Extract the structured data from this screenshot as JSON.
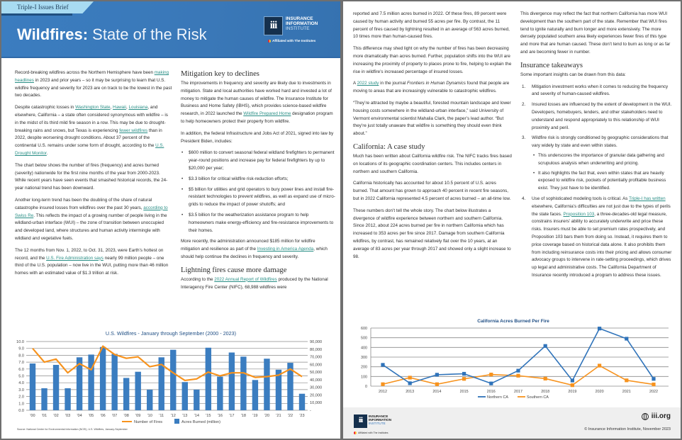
{
  "header": {
    "tag": "Triple-I Issues Brief",
    "title_bold": "Wildfires:",
    "title_light": "State of the Risk",
    "logo": {
      "line1": "INSURANCE",
      "line2": "INFORMATION",
      "line3": "INSTITUTE",
      "mark": "iii",
      "affiliated": "Affiliated with The Institutes"
    }
  },
  "left_col1": [
    {
      "type": "p",
      "segs": [
        {
          "t": "Record-breaking wildfires across the Northern Hemisphere have been "
        },
        {
          "t": "making headlines",
          "link": true
        },
        {
          "t": " in 2023 and prior years – so it may be surprising to learn that U.S. wildfire frequency and severity for 2023 are on track to be the lowest in the past two decades."
        }
      ]
    },
    {
      "type": "p",
      "segs": [
        {
          "t": "Despite catastrophic losses in "
        },
        {
          "t": "Washington State",
          "link": true
        },
        {
          "t": ", "
        },
        {
          "t": "Hawaii",
          "link": true
        },
        {
          "t": ", "
        },
        {
          "t": "Louisiana",
          "link": true
        },
        {
          "t": ", and elsewhere, California – a state often considered synonymous with wildfire – is in the midst of its third mild fire season in a row. This may be due to drought-breaking rains and snows, but Texas is experiencing "
        },
        {
          "t": "fewer wildfires",
          "link": true
        },
        {
          "t": " than in 2022, despite worsening drought conditions. About 37 percent of the continental U.S. remains under some form of drought, according to the "
        },
        {
          "t": "U.S. Drought Monitor",
          "link": true
        },
        {
          "t": "."
        }
      ]
    },
    {
      "type": "p",
      "segs": [
        {
          "t": "The chart below shows the number of fires (frequency) and acres burned (severity) nationwide for the first nine months of the year from 2000-2023. While recent years have seen events that smashed historical records, the 24-year national trend has been downward."
        }
      ]
    },
    {
      "type": "p",
      "segs": [
        {
          "t": "Another long-term trend has been the doubling of the share of natural catastrophe insured losses from wildfires over the past 30 years, "
        },
        {
          "t": "according to Swiss Re",
          "link": true
        },
        {
          "t": ". This reflects the impact of a growing number of people living in the wildland-urban interface (WUI) – the zone of transition between unoccupied and developed land, where structures and human activity intermingle with wildland and vegetative fuels."
        }
      ]
    },
    {
      "type": "p",
      "segs": [
        {
          "t": "The 12 months from Nov. 1, 2022, to Oct. 31, 2023, were Earth’s hottest on record, and the "
        },
        {
          "t": "U.S. Fire Administration says",
          "link": true
        },
        {
          "t": " nearly 99 million people – one third of the U.S. population – now live in the WUI, putting more than 46 million homes with an estimated value of $1.3 trillion at risk."
        }
      ]
    }
  ],
  "left_col2": [
    {
      "type": "h",
      "text": "Mitigation key to declines"
    },
    {
      "type": "p",
      "segs": [
        {
          "t": "The improvements in frequency and severity are likely due to investments in mitigation. State and local authorities have worked hard and invested a lot of money to mitigate the human causes of wildfire. The Insurance Institute for Business and Home Safety (IBHS), which provides science-based wildfire research, in 2022 launched the "
        },
        {
          "t": "Wildfire Prepared Home",
          "link": true
        },
        {
          "t": " designation program to help homeowners protect their property from wildfire."
        }
      ]
    },
    {
      "type": "p",
      "segs": [
        {
          "t": "In addition, the federal Infrastructure and Jobs Act of 2021, signed into law by President Biden, includes:"
        }
      ]
    },
    {
      "type": "ul",
      "items": [
        {
          "segs": [
            {
              "t": "$600 million to convert seasonal federal wildland firefighters to permanent year-round positions and increase pay for federal firefighters by up to $20,000 per year;"
            }
          ]
        },
        {
          "segs": [
            {
              "t": "$3.3 billion for critical wildfire risk-reduction efforts;"
            }
          ]
        },
        {
          "segs": [
            {
              "t": "$5 billion for utilities and grid operators to bury power lines and install fire-resistant technologies to prevent wildfires, as well as expand use of micro-grids to reduce the impact of power shutoffs; and"
            }
          ]
        },
        {
          "segs": [
            {
              "t": "$3.5 billion for the weatherization assistance program to help homeowners make energy-efficiency and fire-resistance improvements to their homes."
            }
          ]
        }
      ]
    },
    {
      "type": "p",
      "segs": [
        {
          "t": "More recently, the administration announced $185 million for wildfire mitigation and resilience as part of the "
        },
        {
          "t": "Investing in America Agenda",
          "link": true
        },
        {
          "t": ", which should help continue the declines in frequency and severity."
        }
      ]
    },
    {
      "type": "h",
      "text": "Lightning fires cause more damage"
    },
    {
      "type": "p",
      "segs": [
        {
          "t": "According to the "
        },
        {
          "t": "2022 Annual Report of Wildfires",
          "link": true
        },
        {
          "t": " produced by the National Interagency Fire Center (NIFC), 68,988 wildfires were"
        }
      ]
    }
  ],
  "right_col1": [
    {
      "type": "p",
      "segs": [
        {
          "t": "reported and 7.5 million acres burned in 2022. Of these fires, 89 percent were caused by human activity and burned 55 acres per fire. By contrast, the 11 percent of fires caused by lightning resulted in an average of 563 acres burned, 10 times more than human-caused fires."
        }
      ]
    },
    {
      "type": "p",
      "segs": [
        {
          "t": "This difference may shed light on why the number of fires has been decreasing more dramatically than acres burned. Further, population shifts into the WUI are increasing the proximity of property to places prone to fire, helping to explain the rise in wildfire’s increased percentage of insured losses."
        }
      ]
    },
    {
      "type": "p",
      "segs": [
        {
          "t": "A "
        },
        {
          "t": "2022 study",
          "link": true
        },
        {
          "t": " in the journal "
        },
        {
          "t": "Frontiers in Human Dynamics",
          "italic": true
        },
        {
          "t": " found that people are moving to areas that are increasingly vulnerable to catastrophic wildfires."
        }
      ]
    },
    {
      "type": "p",
      "segs": [
        {
          "t": "“They’re attracted by maybe a beautiful, forested mountain landscape and lower housing costs somewhere in the wildland-urban interface,” said University of Vermont environmental scientist Mahalia Clark, the paper’s lead author. “But they’re just totally unaware that wildfire is something they should even think about.”"
        }
      ]
    },
    {
      "type": "h",
      "text": "California: A case study"
    },
    {
      "type": "p",
      "segs": [
        {
          "t": "Much has been written about California wildfire risk. The NIFC tracks fires based on locations of its geographic coordination centers. This includes centers in northern and southern California."
        }
      ]
    },
    {
      "type": "p",
      "segs": [
        {
          "t": "California historically has accounted for about 10.5 percent of U.S. acres burned. That amount has grown to approach 40 percent in recent fire seasons, but in 2022 California represented 4.5 percent of acres burned – an all-time low."
        }
      ]
    },
    {
      "type": "p",
      "segs": [
        {
          "t": "These numbers don’t tell the whole story. The chart below illustrates a divergence of wildfire experience between northern and southern California. Since 2012, about 224 acres burned per fire in northern California which has increased to 353 acres per fire since 2017. Damage from southern California wildfires, by contrast, has remained relatively flat over the 10 years, at an average of 83 acres per year through 2017 and showed only a slight increase to 98."
        }
      ]
    }
  ],
  "right_col2": [
    {
      "type": "p",
      "segs": [
        {
          "t": "This divergence may reflect the fact that northern California has more WUI development than the southern part of the state. Remember that WUI fires tend to ignite naturally and burn longer and more extensively. The more densely populated southern area likely experiences fewer fires of this type and more that are human caused. These don’t tend to burn as long or as far and are becoming fewer in number."
        }
      ]
    },
    {
      "type": "h",
      "text": "Insurance takeaways"
    },
    {
      "type": "p",
      "segs": [
        {
          "t": "Some important insights can be drawn from this data:"
        }
      ]
    },
    {
      "type": "ol",
      "items": [
        {
          "num": "1.",
          "segs": [
            {
              "t": "Mitigation investment works when it comes to reducing the frequency and severity of human-caused wildfires."
            }
          ]
        },
        {
          "num": "2.",
          "segs": [
            {
              "t": "Insured losses are influenced by the extent of development in the WUI. Developers, homebuyers, lenders, and other stakeholders need to understand and respond appropriately to this relationship of WUI proximity and peril."
            }
          ]
        },
        {
          "num": "3.",
          "segs": [
            {
              "t": "Wildfire risk is strongly conditioned by geographic considerations that vary widely by state and even within states."
            }
          ],
          "sub": [
            {
              "segs": [
                {
                  "t": "This underscores the importance of granular data gathering and scrupulous analysis when underwriting and pricing."
                }
              ]
            },
            {
              "segs": [
                {
                  "t": "It also highlights the fact that, even within states that are heavily exposed to wildfire risk, pockets of potentially profitable business exist. They just have to be identified."
                }
              ]
            }
          ]
        },
        {
          "num": "4.",
          "segs": [
            {
              "t": "Use of sophisticated modeling tools is critical. As "
            },
            {
              "t": "Triple-I has written",
              "link": true
            },
            {
              "t": " elsewhere, California’s difficulties are not just due to the types of perils the state faces. "
            },
            {
              "t": "Proposition 103",
              "link": true
            },
            {
              "t": ", a three-decades-old legal measure, constrains insurers’ ability to accurately underwrite and price these risks. Insurers must be able to set premium rates prospectively, and Proposition 103 bars them from doing so. Instead, it requires them to price coverage based on historical data alone. It also prohibits them from including reinsurance costs into their pricing and allows consumer advocacy groups to intervene in rate-setting proceedings, which drives up legal and administrative costs. The California Department of Insurance recently introduced a program to address these issues."
            }
          ]
        }
      ]
    }
  ],
  "footer": {
    "site": "iii.org",
    "copyright": "© Insurance Information Institute, November 2023"
  },
  "colors": {
    "banner": "#3a7bbf",
    "bar": "#3b7dc0",
    "line_orange": "#f7931e",
    "northern": "#2f73ba",
    "southern": "#f7931e",
    "link": "#2a8f86"
  },
  "chart_data": [
    {
      "type": "bar+line",
      "title": "U.S. Wildfires - January through September (2000 - 2023)",
      "categories": [
        "'00",
        "'01",
        "'02",
        "'03",
        "'04",
        "'05",
        "'06",
        "'07",
        "'08",
        "'09",
        "'10",
        "'11",
        "'12",
        "'13",
        "'14",
        "'15",
        "'16",
        "'17",
        "'18",
        "'19",
        "'20",
        "'21",
        "'22",
        "'23"
      ],
      "series": [
        {
          "name": "Acres Burned (million)",
          "kind": "bar",
          "axis": "left",
          "values": [
            6.8,
            3.2,
            6.6,
            3.2,
            7.7,
            8.1,
            9.2,
            8.2,
            4.7,
            5.6,
            3.0,
            7.7,
            8.8,
            4.1,
            3.0,
            9.1,
            4.9,
            8.4,
            7.8,
            4.4,
            7.5,
            5.9,
            6.9,
            2.4
          ]
        },
        {
          "name": "Number of Fires",
          "kind": "line",
          "axis": "right",
          "values": [
            81000,
            63000,
            67000,
            49000,
            61000,
            53000,
            84000,
            73000,
            68000,
            70000,
            57000,
            60000,
            49000,
            39000,
            41000,
            50000,
            45000,
            49000,
            49000,
            43000,
            44000,
            46000,
            54000,
            44000
          ]
        }
      ],
      "ylim_left": [
        0,
        10
      ],
      "left_ticks": [
        "0.0",
        "1.0",
        "2.0",
        "3.0",
        "4.0",
        "5.0",
        "6.0",
        "7.0",
        "8.0",
        "9.0",
        "10.0"
      ],
      "ylim_right": [
        0,
        90000
      ],
      "right_ticks": [
        "-",
        "10,000",
        "20,000",
        "30,000",
        "40,000",
        "50,000",
        "60,000",
        "70,000",
        "80,000",
        "90,000"
      ],
      "grid": true,
      "legend": "bottom",
      "source": "Source: National Center for Environmental Information (NCEI), U.S. Wildfires, January-September"
    },
    {
      "type": "line",
      "title": "California Acres Burned Per Fire",
      "categories": [
        "2012",
        "2013",
        "2014",
        "2015",
        "2016",
        "2017",
        "2018",
        "2019",
        "2020",
        "2021",
        "2022"
      ],
      "series": [
        {
          "name": "Northern CA",
          "values": [
            220,
            30,
            118,
            128,
            28,
            160,
            415,
            58,
            595,
            490,
            75
          ]
        },
        {
          "name": "Southern CA",
          "values": [
            20,
            88,
            20,
            75,
            120,
            108,
            78,
            10,
            212,
            60,
            18
          ]
        }
      ],
      "ylim": [
        0,
        600
      ],
      "y_ticks": [
        "0",
        "100",
        "200",
        "300",
        "400",
        "500",
        "600"
      ],
      "grid": true,
      "legend": "bottom"
    }
  ]
}
